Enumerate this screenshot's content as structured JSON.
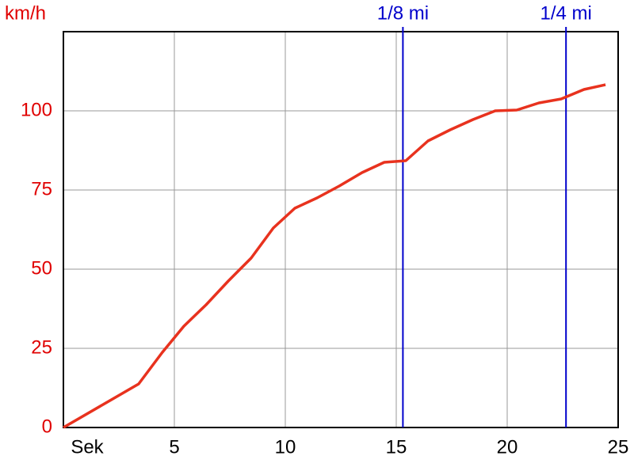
{
  "chart_data": {
    "type": "line",
    "y_label": "km/h",
    "x_label": "Sek",
    "x": [
      0,
      3.39,
      4.46,
      5.43,
      6.43,
      7.43,
      8.46,
      9.46,
      10.43,
      11.43,
      12.43,
      13.46,
      14.46,
      15.43,
      16.43,
      17.43,
      18.46,
      19.46,
      20.43,
      21.43,
      22.43,
      23.46,
      24.43
    ],
    "series": [
      {
        "name": "km/h",
        "color": "#e8321e",
        "values": [
          0,
          13.75,
          23.75,
          32,
          38.75,
          46.25,
          53.5,
          63,
          69.25,
          72.5,
          76.25,
          80.5,
          83.75,
          84.25,
          90.5,
          94,
          97.25,
          100,
          100.25,
          102.5,
          103.75,
          106.75,
          108.25
        ]
      }
    ],
    "xlim": [
      0,
      25
    ],
    "xticks": [
      5,
      10,
      15,
      20,
      25
    ],
    "ylim": [
      0,
      125
    ],
    "yticks": [
      0,
      25,
      50,
      75,
      100
    ],
    "grid": true,
    "y_tick_color": "#e00000",
    "marker_color": "#0000cc",
    "markers": [
      {
        "label": "1/8 mi",
        "x": 15.3
      },
      {
        "label": "1/4 mi",
        "x": 22.65
      }
    ]
  }
}
